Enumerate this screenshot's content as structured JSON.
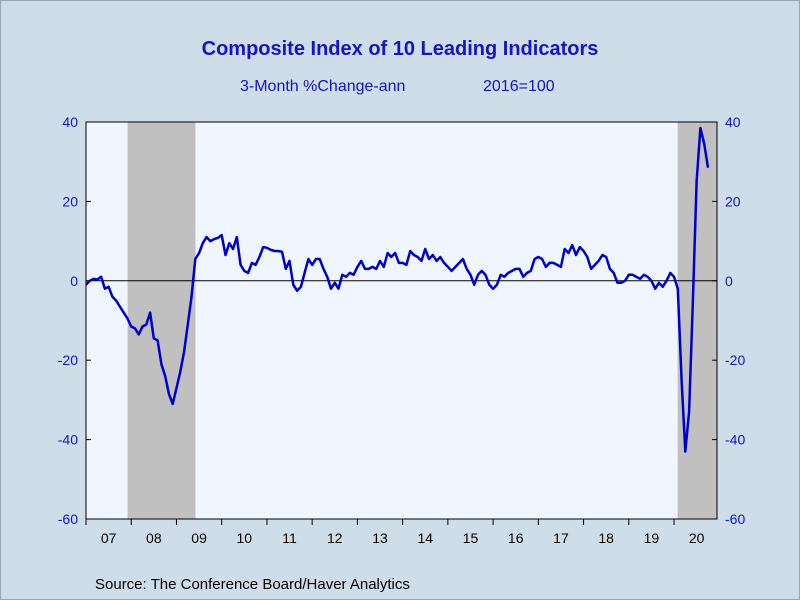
{
  "chart_data": {
    "type": "line",
    "title": "Composite Index of 10 Leading Indicators",
    "subtitle_left": "3-Month %Change-ann",
    "subtitle_right": "2016=100",
    "source": "Source:  The Conference Board/Haver Analytics",
    "ylim": [
      -60,
      40
    ],
    "y_ticks_left": [
      "40",
      "20",
      "0",
      "-20",
      "-40",
      "-60"
    ],
    "y_ticks_right": [
      "40",
      "20",
      "0",
      "-20",
      "-40",
      "-60"
    ],
    "y_tick_values": [
      40,
      20,
      0,
      -20,
      -40,
      -60
    ],
    "x_range": [
      2007.0,
      2020.95
    ],
    "x_tick_labels": [
      "07",
      "08",
      "09",
      "10",
      "11",
      "12",
      "13",
      "14",
      "15",
      "16",
      "17",
      "18",
      "19",
      "20"
    ],
    "grid": false,
    "zero_line": true,
    "recessions": [
      [
        2007.92,
        2009.42
      ],
      [
        2020.08,
        2020.95
      ]
    ],
    "colors": {
      "line": "#0000cc",
      "plot_bg": "#f0f6ff",
      "recession": "#c0c0c0",
      "outer_bg": "#cfdde8",
      "text": "#1414c8"
    },
    "series": [
      {
        "points": [
          [
            2007.0,
            -1.0
          ],
          [
            2007.083,
            0.0
          ],
          [
            2007.167,
            0.5
          ],
          [
            2007.25,
            0.3
          ],
          [
            2007.333,
            1.0
          ],
          [
            2007.417,
            -2.0
          ],
          [
            2007.5,
            -1.5
          ],
          [
            2007.583,
            -4.0
          ],
          [
            2007.667,
            -5.0
          ],
          [
            2007.75,
            -6.5
          ],
          [
            2007.833,
            -8.0
          ],
          [
            2007.917,
            -9.5
          ],
          [
            2008.0,
            -11.5
          ],
          [
            2008.083,
            -12.0
          ],
          [
            2008.167,
            -13.5
          ],
          [
            2008.25,
            -11.5
          ],
          [
            2008.333,
            -11.0
          ],
          [
            2008.417,
            -8.0
          ],
          [
            2008.5,
            -14.5
          ],
          [
            2008.583,
            -15.0
          ],
          [
            2008.667,
            -21.0
          ],
          [
            2008.75,
            -24.0
          ],
          [
            2008.833,
            -28.5
          ],
          [
            2008.917,
            -31.0
          ],
          [
            2009.0,
            -27.0
          ],
          [
            2009.083,
            -23.0
          ],
          [
            2009.167,
            -18.0
          ],
          [
            2009.25,
            -11.0
          ],
          [
            2009.333,
            -4.0
          ],
          [
            2009.417,
            5.5
          ],
          [
            2009.5,
            7.0
          ],
          [
            2009.583,
            9.5
          ],
          [
            2009.667,
            11.0
          ],
          [
            2009.75,
            10.0
          ],
          [
            2009.833,
            10.5
          ],
          [
            2009.917,
            10.8
          ],
          [
            2010.0,
            11.5
          ],
          [
            2010.083,
            6.5
          ],
          [
            2010.167,
            9.5
          ],
          [
            2010.25,
            8.0
          ],
          [
            2010.333,
            11.0
          ],
          [
            2010.417,
            4.0
          ],
          [
            2010.5,
            2.5
          ],
          [
            2010.583,
            2.0
          ],
          [
            2010.667,
            4.5
          ],
          [
            2010.75,
            4.0
          ],
          [
            2010.833,
            6.0
          ],
          [
            2010.917,
            8.5
          ],
          [
            2011.0,
            8.3
          ],
          [
            2011.083,
            7.8
          ],
          [
            2011.167,
            7.5
          ],
          [
            2011.25,
            7.5
          ],
          [
            2011.333,
            7.3
          ],
          [
            2011.417,
            3.0
          ],
          [
            2011.5,
            5.0
          ],
          [
            2011.583,
            -1.0
          ],
          [
            2011.667,
            -2.5
          ],
          [
            2011.75,
            -1.5
          ],
          [
            2011.833,
            2.0
          ],
          [
            2011.917,
            5.5
          ],
          [
            2012.0,
            4.0
          ],
          [
            2012.083,
            5.5
          ],
          [
            2012.167,
            5.5
          ],
          [
            2012.25,
            3.0
          ],
          [
            2012.333,
            1.0
          ],
          [
            2012.417,
            -2.0
          ],
          [
            2012.5,
            -0.5
          ],
          [
            2012.583,
            -2.0
          ],
          [
            2012.667,
            1.5
          ],
          [
            2012.75,
            1.0
          ],
          [
            2012.833,
            2.0
          ],
          [
            2012.917,
            1.5
          ],
          [
            2013.0,
            3.5
          ],
          [
            2013.083,
            5.0
          ],
          [
            2013.167,
            3.0
          ],
          [
            2013.25,
            3.0
          ],
          [
            2013.333,
            3.5
          ],
          [
            2013.417,
            3.0
          ],
          [
            2013.5,
            5.0
          ],
          [
            2013.583,
            3.5
          ],
          [
            2013.667,
            7.0
          ],
          [
            2013.75,
            6.0
          ],
          [
            2013.833,
            7.0
          ],
          [
            2013.917,
            4.5
          ],
          [
            2014.0,
            4.5
          ],
          [
            2014.083,
            4.0
          ],
          [
            2014.167,
            7.5
          ],
          [
            2014.25,
            6.5
          ],
          [
            2014.333,
            6.0
          ],
          [
            2014.417,
            5.0
          ],
          [
            2014.5,
            8.0
          ],
          [
            2014.583,
            5.5
          ],
          [
            2014.667,
            6.5
          ],
          [
            2014.75,
            5.0
          ],
          [
            2014.833,
            6.0
          ],
          [
            2014.917,
            4.5
          ],
          [
            2015.0,
            3.5
          ],
          [
            2015.083,
            2.5
          ],
          [
            2015.167,
            3.5
          ],
          [
            2015.25,
            4.5
          ],
          [
            2015.333,
            5.5
          ],
          [
            2015.417,
            3.0
          ],
          [
            2015.5,
            1.5
          ],
          [
            2015.583,
            -1.0
          ],
          [
            2015.667,
            1.5
          ],
          [
            2015.75,
            2.5
          ],
          [
            2015.833,
            1.5
          ],
          [
            2015.917,
            -1.0
          ],
          [
            2016.0,
            -2.0
          ],
          [
            2016.083,
            -1.0
          ],
          [
            2016.167,
            1.5
          ],
          [
            2016.25,
            1.0
          ],
          [
            2016.333,
            2.0
          ],
          [
            2016.417,
            2.5
          ],
          [
            2016.5,
            3.0
          ],
          [
            2016.583,
            3.0
          ],
          [
            2016.667,
            1.0
          ],
          [
            2016.75,
            2.0
          ],
          [
            2016.833,
            2.5
          ],
          [
            2016.917,
            5.5
          ],
          [
            2017.0,
            6.0
          ],
          [
            2017.083,
            5.5
          ],
          [
            2017.167,
            3.5
          ],
          [
            2017.25,
            4.5
          ],
          [
            2017.333,
            4.5
          ],
          [
            2017.417,
            4.0
          ],
          [
            2017.5,
            3.5
          ],
          [
            2017.583,
            8.0
          ],
          [
            2017.667,
            7.0
          ],
          [
            2017.75,
            9.0
          ],
          [
            2017.833,
            6.5
          ],
          [
            2017.917,
            8.5
          ],
          [
            2018.0,
            7.5
          ],
          [
            2018.083,
            6.0
          ],
          [
            2018.167,
            3.0
          ],
          [
            2018.25,
            4.0
          ],
          [
            2018.333,
            5.0
          ],
          [
            2018.417,
            6.5
          ],
          [
            2018.5,
            6.0
          ],
          [
            2018.583,
            3.0
          ],
          [
            2018.667,
            2.0
          ],
          [
            2018.75,
            -0.5
          ],
          [
            2018.833,
            -0.5
          ],
          [
            2018.917,
            0.0
          ],
          [
            2019.0,
            1.5
          ],
          [
            2019.083,
            1.5
          ],
          [
            2019.167,
            1.0
          ],
          [
            2019.25,
            0.5
          ],
          [
            2019.333,
            1.5
          ],
          [
            2019.417,
            1.0
          ],
          [
            2019.5,
            0.0
          ],
          [
            2019.583,
            -2.0
          ],
          [
            2019.667,
            -0.5
          ],
          [
            2019.75,
            -1.5
          ],
          [
            2019.833,
            0.0
          ],
          [
            2019.917,
            2.0
          ],
          [
            2020.0,
            1.0
          ],
          [
            2020.083,
            -2.0
          ],
          [
            2020.167,
            -25.0
          ],
          [
            2020.25,
            -43.0
          ],
          [
            2020.333,
            -33.0
          ],
          [
            2020.417,
            -5.0
          ],
          [
            2020.5,
            25.0
          ],
          [
            2020.583,
            38.5
          ],
          [
            2020.667,
            34.5
          ],
          [
            2020.75,
            28.5
          ]
        ]
      }
    ]
  }
}
